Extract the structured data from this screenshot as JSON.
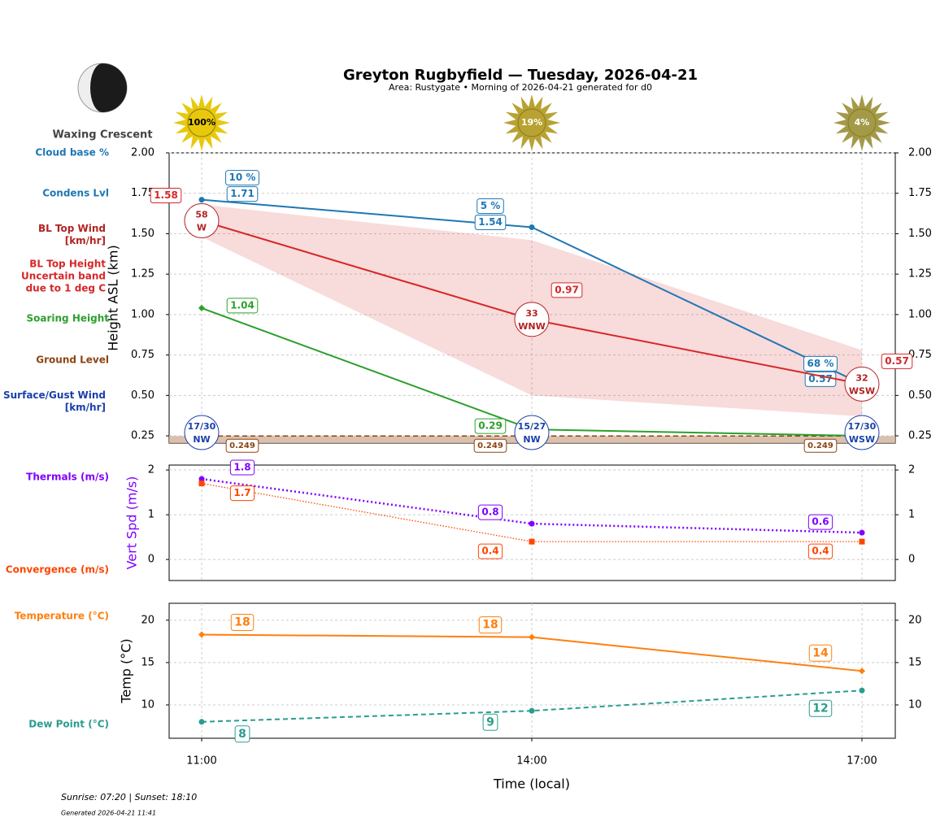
{
  "header": {
    "title": "Greyton Rugbyfield — Tuesday, 2026-04-21",
    "subtitle": "Area: Rustygate • Morning of 2026-04-21 generated for d0",
    "moon_phase": "Waxing Crescent"
  },
  "footer": {
    "sun": "Sunrise: 07:20 | Sunset: 18:10",
    "generated": "Generated 2026-04-21 11:41"
  },
  "chart_data": [
    {
      "type": "line",
      "ylabel": "Height ASL (km)",
      "ylim": [
        0.205,
        2.0
      ],
      "yticks": [
        0.25,
        {
          "value": 0.5,
          "label": "0.50"
        },
        0.75,
        {
          "value": 1,
          "label": "1.00"
        },
        1.25,
        {
          "value": 1.5,
          "label": "1.50"
        },
        1.75,
        {
          "value": 2,
          "label": "2.00"
        }
      ],
      "grid": true,
      "sun": {
        "values": [
          100,
          19,
          4
        ],
        "value_labels": [
          "100%",
          "19%",
          "4%"
        ],
        "colors": [
          "#e8c80a",
          "#b8a232",
          "#a39a48"
        ]
      },
      "series": [
        {
          "name": "Cloud base %",
          "type": "label",
          "color": "#1f77b4",
          "values": [
            10,
            5,
            68
          ],
          "value_labels": [
            "10 %",
            "5 %",
            "68 %"
          ]
        },
        {
          "name": "Condens Lvl",
          "type": "line",
          "color": "#1f77b4",
          "marker": "circle",
          "values": [
            1.71,
            1.54,
            0.57
          ]
        },
        {
          "name": "BL Top Wind [km/hr]",
          "type": "wind",
          "color": "#b22222",
          "values": [
            58,
            33,
            32
          ],
          "directions": [
            "W",
            "WNW",
            "WSW"
          ]
        },
        {
          "type": "line",
          "color": "#d62728",
          "values": [
            1.58,
            0.97,
            0.57
          ]
        },
        {
          "name": "BL Top Height Uncertain band due to 1 deg C",
          "type": "band",
          "color": "#d62728",
          "lower": [
            1.48,
            0.5,
            0.37
          ],
          "upper": [
            1.68,
            1.46,
            0.78
          ]
        },
        {
          "name": "Soaring Height",
          "type": "line",
          "color": "#2ca02c",
          "marker": "diamond",
          "values": [
            1.04,
            0.29,
            0.25
          ],
          "value_labels": [
            "1.04",
            "0.29",
            null
          ]
        },
        {
          "name": "Ground Level",
          "type": "ground",
          "color": "#8b4513",
          "values": [
            0.249,
            0.249,
            0.249
          ]
        },
        {
          "name": "Surface/Gust Wind [km/hr]",
          "type": "wind",
          "color": "#1a3faa",
          "values": [
            17,
            15,
            17
          ],
          "gust": [
            30,
            27,
            30
          ],
          "value_labels": [
            "17/30",
            "15/27",
            "17/30"
          ],
          "directions": [
            "NW",
            "NW",
            "WSW"
          ]
        }
      ]
    },
    {
      "type": "line",
      "ylabel": "Vert Spd (m/s)",
      "ylabel_color": "#7f00ff",
      "ylim": [
        -0.47,
        2.11
      ],
      "yticks": [
        0,
        1,
        2
      ],
      "grid": true,
      "series": [
        {
          "name": "Thermals (m/s)",
          "type": "line",
          "color": "#7f00ff",
          "marker": "circle",
          "dash": "dotted",
          "values": [
            1.8,
            0.8,
            0.6
          ]
        },
        {
          "name": "Convergence (m/s)",
          "type": "line",
          "color": "#ff4500",
          "marker": "square",
          "dash": "fine",
          "values": [
            1.7,
            0.4,
            0.4
          ]
        }
      ]
    },
    {
      "type": "line",
      "ylabel": "Temp (°C)",
      "xlabel": "Time (local)",
      "categories": [
        "11:00",
        "14:00",
        "17:00"
      ],
      "ylim": [
        6.06,
        22.0
      ],
      "yticks": [
        10,
        15,
        20
      ],
      "grid": true,
      "series": [
        {
          "name": "Temperature (°C)",
          "type": "line",
          "color": "#ff7f0e",
          "marker": "diamond",
          "values": [
            18.3,
            18.0,
            14.0
          ],
          "value_labels": [
            "18",
            "18",
            "14"
          ]
        },
        {
          "name": "Dew Point (°C)",
          "type": "line",
          "color": "#2a9d8f",
          "marker": "circle",
          "dash": "dashed",
          "values": [
            8.0,
            9.3,
            11.7
          ],
          "value_labels": [
            "8",
            "9",
            "12"
          ]
        }
      ]
    }
  ]
}
